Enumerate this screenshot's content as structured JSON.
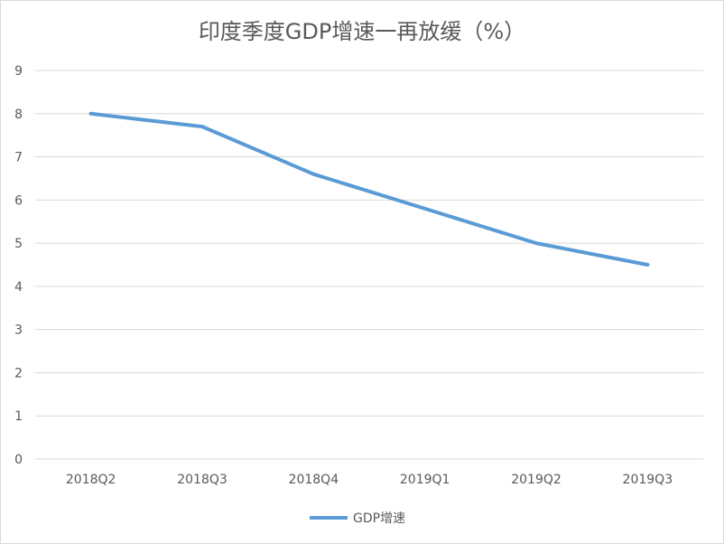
{
  "chart_data": {
    "type": "line",
    "title": "印度季度GDP增速一再放缓（%）",
    "categories": [
      "2018Q2",
      "2018Q3",
      "2018Q4",
      "2019Q1",
      "2019Q2",
      "2019Q3"
    ],
    "series": [
      {
        "name": "GDP增速",
        "values": [
          8.0,
          7.7,
          6.6,
          5.8,
          5.0,
          4.5
        ]
      }
    ],
    "ylim": [
      0,
      9
    ],
    "yticks": [
      0,
      1,
      2,
      3,
      4,
      5,
      6,
      7,
      8,
      9
    ],
    "grid": true,
    "legend": "bottom",
    "colors": {
      "line": "#5b9bd5",
      "grid": "#d9d9d9",
      "text": "#595959"
    }
  }
}
